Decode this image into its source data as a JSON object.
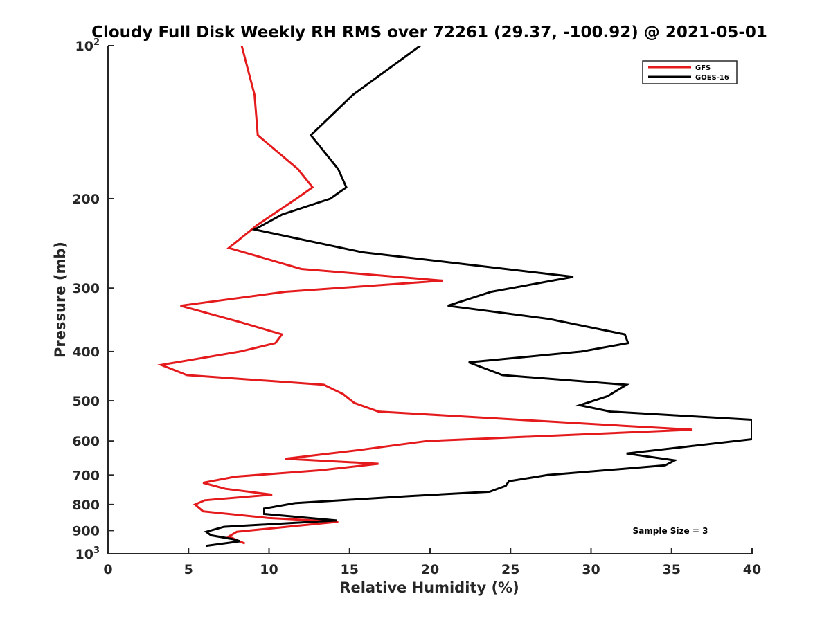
{
  "chart_data": {
    "type": "line",
    "title": "Cloudy Full Disk Weekly RH RMS over 72261 (29.37, -100.92) @ 2021-05-01",
    "xlabel": "Relative Humidity (%)",
    "ylabel": "Pressure (mb)",
    "xlim": [
      0,
      40
    ],
    "ylim": [
      100,
      1000
    ],
    "yscale": "log",
    "y_reversed": true,
    "grid": false,
    "legend_position": "top-right",
    "x_ticks": [
      "0",
      "5",
      "10",
      "15",
      "20",
      "25",
      "30",
      "35",
      "40"
    ],
    "x_tick_values": [
      0,
      5,
      10,
      15,
      20,
      25,
      30,
      35,
      40
    ],
    "y_ticks": [
      {
        "value": 100,
        "base": "10",
        "exp": "2"
      },
      {
        "value": 200,
        "label": "200"
      },
      {
        "value": 300,
        "label": "300"
      },
      {
        "value": 400,
        "label": "400"
      },
      {
        "value": 500,
        "label": "500"
      },
      {
        "value": 600,
        "label": "600"
      },
      {
        "value": 700,
        "label": "700"
      },
      {
        "value": 800,
        "label": "800"
      },
      {
        "value": 900,
        "label": "900"
      },
      {
        "value": 1000,
        "base": "10",
        "exp": "3"
      }
    ],
    "series": [
      {
        "name": "GFS",
        "color": "#e41a1c",
        "points": [
          [
            8.3,
            100
          ],
          [
            9.1,
            125
          ],
          [
            9.3,
            150
          ],
          [
            11.8,
            175
          ],
          [
            12.7,
            190
          ],
          [
            11.7,
            200
          ],
          [
            9.3,
            225
          ],
          [
            7.5,
            250
          ],
          [
            12.0,
            275
          ],
          [
            20.8,
            290
          ],
          [
            11.0,
            305
          ],
          [
            4.5,
            325
          ],
          [
            8.2,
            350
          ],
          [
            10.8,
            370
          ],
          [
            10.4,
            385
          ],
          [
            8.2,
            400
          ],
          [
            3.3,
            425
          ],
          [
            4.9,
            445
          ],
          [
            13.4,
            465
          ],
          [
            14.6,
            485
          ],
          [
            15.3,
            505
          ],
          [
            16.8,
            525
          ],
          [
            32.0,
            560
          ],
          [
            36.3,
            570
          ],
          [
            19.8,
            600
          ],
          [
            15.6,
            625
          ],
          [
            11.0,
            650
          ],
          [
            16.8,
            665
          ],
          [
            13.2,
            685
          ],
          [
            7.9,
            705
          ],
          [
            5.9,
            725
          ],
          [
            7.3,
            745
          ],
          [
            10.2,
            765
          ],
          [
            6.0,
            785
          ],
          [
            5.4,
            800
          ],
          [
            5.9,
            825
          ],
          [
            9.9,
            850
          ],
          [
            14.3,
            865
          ],
          [
            11.9,
            880
          ],
          [
            8.0,
            905
          ],
          [
            7.5,
            925
          ],
          [
            8.5,
            955
          ]
        ]
      },
      {
        "name": "GOES-16",
        "color": "#000000",
        "points": [
          [
            19.4,
            100
          ],
          [
            15.2,
            125
          ],
          [
            12.6,
            150
          ],
          [
            14.3,
            175
          ],
          [
            14.8,
            190
          ],
          [
            13.8,
            200
          ],
          [
            10.8,
            215
          ],
          [
            9.1,
            230
          ],
          [
            15.8,
            255
          ],
          [
            28.9,
            285
          ],
          [
            23.8,
            305
          ],
          [
            21.1,
            325
          ],
          [
            27.4,
            345
          ],
          [
            32.1,
            370
          ],
          [
            32.3,
            385
          ],
          [
            29.4,
            400
          ],
          [
            22.4,
            420
          ],
          [
            24.5,
            445
          ],
          [
            32.2,
            465
          ],
          [
            31.0,
            490
          ],
          [
            29.3,
            510
          ],
          [
            31.2,
            525
          ],
          [
            40.0,
            545
          ],
          [
            40.0,
            595
          ],
          [
            32.2,
            635
          ],
          [
            35.2,
            655
          ],
          [
            34.6,
            670
          ],
          [
            27.3,
            700
          ],
          [
            24.9,
            720
          ],
          [
            24.7,
            735
          ],
          [
            23.7,
            755
          ],
          [
            18.7,
            770
          ],
          [
            11.6,
            795
          ],
          [
            9.7,
            815
          ],
          [
            9.7,
            835
          ],
          [
            14.2,
            860
          ],
          [
            7.2,
            885
          ],
          [
            6.1,
            905
          ],
          [
            6.4,
            920
          ],
          [
            7.7,
            935
          ],
          [
            8.2,
            945
          ],
          [
            6.1,
            965
          ]
        ]
      }
    ],
    "annotation": "Sample Size = 3"
  }
}
